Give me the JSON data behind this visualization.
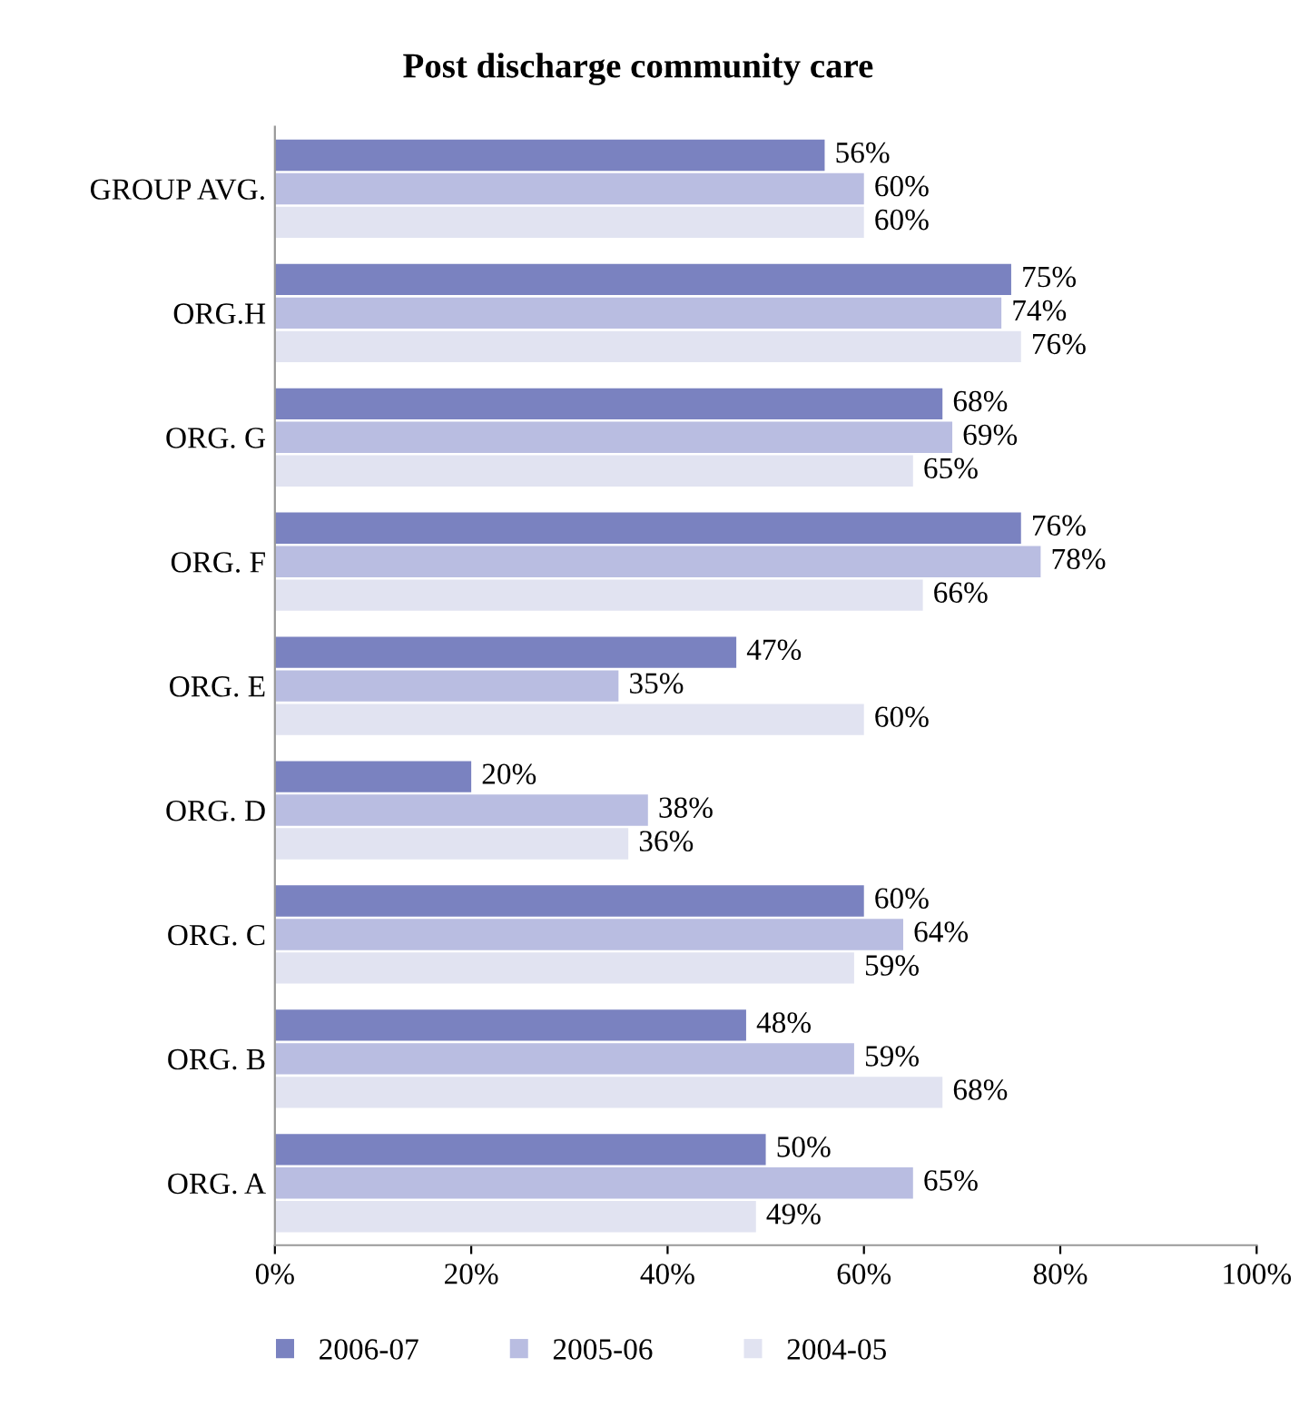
{
  "chart_data": {
    "type": "bar",
    "orientation": "horizontal",
    "title": "Post discharge community care",
    "categories": [
      "GROUP AVG.",
      "ORG.H",
      "ORG. G",
      "ORG. F",
      "ORG. E",
      "ORG. D",
      "ORG. C",
      "ORG. B",
      "ORG. A"
    ],
    "series": [
      {
        "name": "2006-07",
        "color": "#7a82c0",
        "values": [
          56,
          75,
          68,
          76,
          47,
          20,
          60,
          48,
          50
        ],
        "value_labels": [
          "56%",
          "75%",
          "68%",
          "76%",
          "47%",
          "20%",
          "60%",
          "48%",
          "50%"
        ]
      },
      {
        "name": "2005-06",
        "color": "#b9bde1",
        "values": [
          60,
          74,
          69,
          78,
          35,
          38,
          64,
          59,
          65
        ],
        "value_labels": [
          "60%",
          "74%",
          "69%",
          "78%",
          "35%",
          "38%",
          "64%",
          "59%",
          "65%"
        ]
      },
      {
        "name": "2004-05",
        "color": "#e1e3f1",
        "values": [
          60,
          76,
          65,
          66,
          60,
          36,
          59,
          68,
          49
        ],
        "value_labels": [
          "60%",
          "76%",
          "65%",
          "66%",
          "60%",
          "36%",
          "59%",
          "68%",
          "49%"
        ]
      }
    ],
    "xlim": [
      0,
      100
    ],
    "xticks": [
      {
        "value": 0,
        "label": "0%"
      },
      {
        "value": 20,
        "label": "20%"
      },
      {
        "value": 40,
        "label": "40%"
      },
      {
        "value": 60,
        "label": "60%"
      },
      {
        "value": 80,
        "label": "80%"
      },
      {
        "value": 100,
        "label": "100%"
      }
    ],
    "grid": false,
    "legend": "bottom"
  }
}
